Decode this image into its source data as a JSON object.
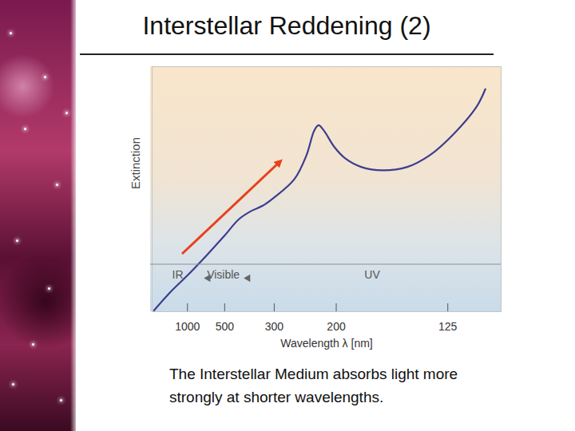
{
  "chart_data": {
    "type": "line",
    "title": "Interstellar Reddening (2)",
    "caption": "The Interstellar Medium absorbs light more strongly at shorter wavelengths.",
    "x_label": "Wavelength λ [nm]",
    "y_label": "Extinction",
    "x": [
      10000,
      1800,
      1000,
      660,
      500,
      420,
      370,
      330,
      300,
      258,
      238,
      227,
      221,
      214,
      202,
      190,
      176,
      160,
      145,
      133,
      123,
      114,
      111
    ],
    "values": [
      0.05,
      0.82,
      1.48,
      2.3,
      3.11,
      3.77,
      4.1,
      4.33,
      4.66,
      5.41,
      6.39,
      7.38,
      7.61,
      7.38,
      6.72,
      6.23,
      5.9,
      5.77,
      5.9,
      6.39,
      7.21,
      8.36,
      9.08
    ],
    "color": "#3d3d8f",
    "xlim": [
      20000,
      106
    ],
    "xticks": [
      1000,
      500,
      300,
      200,
      125
    ],
    "ylim": [
      0,
      10
    ],
    "yticks": [],
    "tick_labels": "x",
    "bands": [
      {
        "label": "IR",
        "from": 20000,
        "to": 700
      },
      {
        "label": "Visible",
        "from": 700,
        "to": 400
      },
      {
        "label": "UV",
        "from": 400,
        "to": 106
      }
    ]
  }
}
